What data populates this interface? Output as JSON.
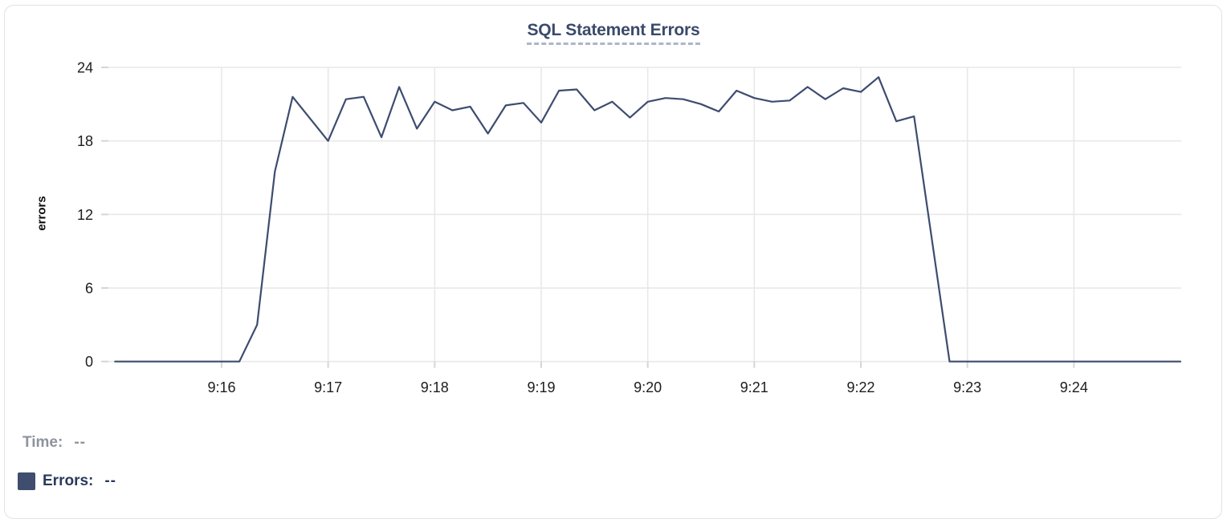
{
  "chart_data": {
    "type": "line",
    "title": "SQL Statement Errors",
    "xlabel": "",
    "ylabel": "errors",
    "x_tick_labels": [
      "9:16",
      "9:17",
      "9:18",
      "9:19",
      "9:20",
      "9:21",
      "9:22",
      "9:23",
      "9:24"
    ],
    "y_ticks": [
      0,
      6,
      12,
      18,
      24
    ],
    "ylim": [
      0,
      24
    ],
    "x_range": [
      "9:15:00",
      "9:25:00"
    ],
    "grid": true,
    "legend_position": "bottom-left",
    "series": [
      {
        "name": "Errors",
        "color": "#3d4c6f",
        "points": [
          [
            "9:15:00",
            0
          ],
          [
            "9:15:10",
            0
          ],
          [
            "9:15:20",
            0
          ],
          [
            "9:15:30",
            0
          ],
          [
            "9:15:40",
            0
          ],
          [
            "9:15:50",
            0
          ],
          [
            "9:16:00",
            0
          ],
          [
            "9:16:10",
            0
          ],
          [
            "9:16:20",
            3
          ],
          [
            "9:16:30",
            15.5
          ],
          [
            "9:16:40",
            21.6
          ],
          [
            "9:16:50",
            19.8
          ],
          [
            "9:17:00",
            18
          ],
          [
            "9:17:10",
            21.4
          ],
          [
            "9:17:20",
            21.6
          ],
          [
            "9:17:30",
            18.3
          ],
          [
            "9:17:40",
            22.4
          ],
          [
            "9:17:50",
            19
          ],
          [
            "9:18:00",
            21.2
          ],
          [
            "9:18:10",
            20.5
          ],
          [
            "9:18:20",
            20.8
          ],
          [
            "9:18:30",
            18.6
          ],
          [
            "9:18:40",
            20.9
          ],
          [
            "9:18:50",
            21.1
          ],
          [
            "9:19:00",
            19.5
          ],
          [
            "9:19:10",
            22.1
          ],
          [
            "9:19:20",
            22.2
          ],
          [
            "9:19:30",
            20.5
          ],
          [
            "9:19:40",
            21.2
          ],
          [
            "9:19:50",
            19.9
          ],
          [
            "9:20:00",
            21.2
          ],
          [
            "9:20:10",
            21.5
          ],
          [
            "9:20:20",
            21.4
          ],
          [
            "9:20:30",
            21
          ],
          [
            "9:20:40",
            20.4
          ],
          [
            "9:20:50",
            22.1
          ],
          [
            "9:21:00",
            21.5
          ],
          [
            "9:21:10",
            21.2
          ],
          [
            "9:21:20",
            21.3
          ],
          [
            "9:21:30",
            22.4
          ],
          [
            "9:21:40",
            21.4
          ],
          [
            "9:21:50",
            22.3
          ],
          [
            "9:22:00",
            22
          ],
          [
            "9:22:10",
            23.2
          ],
          [
            "9:22:20",
            19.6
          ],
          [
            "9:22:30",
            20
          ],
          [
            "9:22:40",
            10
          ],
          [
            "9:22:50",
            0
          ],
          [
            "9:23:00",
            0
          ],
          [
            "9:23:10",
            0
          ],
          [
            "9:23:20",
            0
          ],
          [
            "9:23:30",
            0
          ],
          [
            "9:23:40",
            0
          ],
          [
            "9:23:50",
            0
          ],
          [
            "9:24:00",
            0
          ],
          [
            "9:24:10",
            0
          ],
          [
            "9:24:20",
            0
          ],
          [
            "9:24:30",
            0
          ],
          [
            "9:24:40",
            0
          ],
          [
            "9:24:50",
            0
          ],
          [
            "9:25:00",
            0
          ]
        ]
      }
    ]
  },
  "legend": {
    "time_label": "Time:",
    "time_value": "--",
    "errors_label": "Errors:",
    "errors_value": "--",
    "errors_color": "#3f4e6e"
  },
  "colors": {
    "line": "#3d4c6f",
    "grid": "#e8e8e8",
    "tick": "#d6d6d6",
    "tick_text": "#1d1d1f",
    "title": "#3a4a6b",
    "title_underline": "#aab6ca",
    "time_legend_text": "#8d949f",
    "errors_legend_text": "#2b3a5c",
    "card_border": "#e2e2e2"
  }
}
